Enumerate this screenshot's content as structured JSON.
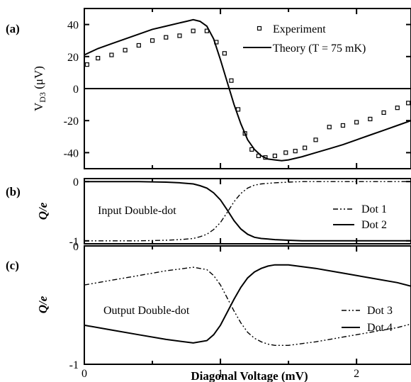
{
  "chart_data": [
    {
      "panel": "(a)",
      "type": "line",
      "ylabel_main": "V",
      "ylabel_sub": "D3",
      "ylabel_unit": " (μV)",
      "xlim": [
        0,
        2.4
      ],
      "ylim": [
        -50,
        50
      ],
      "yticks": [
        40,
        20,
        0,
        -20,
        -40
      ],
      "ytick_labels": [
        "40",
        "20",
        "0",
        "-20",
        "-40"
      ],
      "zero_line": true,
      "legend_position": "top-right",
      "series": [
        {
          "name": "Experiment",
          "marker": "open-square",
          "x": [
            0.02,
            0.1,
            0.2,
            0.3,
            0.4,
            0.5,
            0.6,
            0.7,
            0.8,
            0.9,
            0.97,
            1.03,
            1.08,
            1.13,
            1.18,
            1.23,
            1.28,
            1.33,
            1.4,
            1.48,
            1.55,
            1.62,
            1.7,
            1.8,
            1.9,
            2.0,
            2.1,
            2.2,
            2.3,
            2.38
          ],
          "values": [
            15,
            19,
            21,
            24,
            27,
            30,
            32,
            33,
            36,
            36,
            29,
            22,
            5,
            -13,
            -28,
            -38,
            -42,
            -43,
            -42,
            -40,
            -39,
            -37,
            -32,
            -24,
            -23,
            -21,
            -19,
            -15,
            -12,
            -9
          ]
        },
        {
          "name": "Theory (T = 75 mK)",
          "style": "solid",
          "x": [
            0,
            0.1,
            0.2,
            0.3,
            0.4,
            0.5,
            0.6,
            0.7,
            0.75,
            0.8,
            0.85,
            0.9,
            0.95,
            1.0,
            1.05,
            1.1,
            1.15,
            1.2,
            1.25,
            1.3,
            1.35,
            1.4,
            1.45,
            1.5,
            1.6,
            1.7,
            1.8,
            1.9,
            2.0,
            2.1,
            2.2,
            2.3,
            2.4
          ],
          "values": [
            21,
            25,
            28,
            31,
            34,
            37,
            39,
            41,
            42,
            43,
            42,
            39,
            31,
            18,
            4,
            -10,
            -22,
            -32,
            -38,
            -42,
            -44,
            -44.5,
            -45,
            -44.5,
            -42.5,
            -40,
            -37.5,
            -35,
            -32,
            -29,
            -26,
            -23,
            -20
          ]
        }
      ]
    },
    {
      "panel": "(b)",
      "type": "line",
      "ylabel": "Q/e",
      "xlim": [
        0,
        2.4
      ],
      "ylim": [
        -1.05,
        0.05
      ],
      "yticks": [
        0,
        -1
      ],
      "ytick_labels": [
        "0",
        "-1"
      ],
      "annotation": "Input Double-dot",
      "legend_position": "right",
      "series": [
        {
          "name": "Dot 1",
          "style": "dash-dot-dot",
          "x": [
            0,
            0.2,
            0.4,
            0.6,
            0.7,
            0.8,
            0.85,
            0.9,
            0.95,
            1.0,
            1.05,
            1.1,
            1.15,
            1.2,
            1.25,
            1.3,
            1.35,
            1.4,
            1.5,
            1.6,
            1.8,
            2.0,
            2.2,
            2.4
          ],
          "values": [
            -1,
            -1,
            -1,
            -0.99,
            -0.98,
            -0.96,
            -0.93,
            -0.89,
            -0.81,
            -0.69,
            -0.52,
            -0.34,
            -0.2,
            -0.11,
            -0.06,
            -0.04,
            -0.03,
            -0.02,
            -0.01,
            0,
            0,
            0,
            0,
            0
          ]
        },
        {
          "name": "Dot 2",
          "style": "solid",
          "x": [
            0,
            0.2,
            0.4,
            0.6,
            0.7,
            0.8,
            0.85,
            0.9,
            0.95,
            1.0,
            1.05,
            1.1,
            1.15,
            1.2,
            1.25,
            1.3,
            1.35,
            1.4,
            1.5,
            1.6,
            1.8,
            2.0,
            2.2,
            2.4
          ],
          "values": [
            0,
            0,
            0,
            -0.01,
            -0.02,
            -0.04,
            -0.07,
            -0.11,
            -0.19,
            -0.31,
            -0.48,
            -0.66,
            -0.8,
            -0.89,
            -0.94,
            -0.96,
            -0.97,
            -0.98,
            -0.99,
            -1,
            -1,
            -1,
            -1,
            -1
          ]
        }
      ]
    },
    {
      "panel": "(c)",
      "type": "line",
      "ylabel": "Q/e",
      "xlim": [
        0,
        2.4
      ],
      "ylim": [
        -1,
        0
      ],
      "yticks": [
        0,
        -1
      ],
      "ytick_labels": [
        "0",
        "-1"
      ],
      "xticks": [
        0,
        1,
        2
      ],
      "xtick_labels": [
        "0",
        "1",
        "2"
      ],
      "xlabel": "Diagonal Voltage (mV)",
      "annotation": "Output Double-dot",
      "legend_position": "right",
      "series": [
        {
          "name": "Dot 3",
          "style": "dash-dot-dot",
          "x": [
            0,
            0.2,
            0.4,
            0.6,
            0.8,
            0.9,
            0.95,
            1.0,
            1.05,
            1.1,
            1.15,
            1.2,
            1.25,
            1.3,
            1.35,
            1.4,
            1.45,
            1.5,
            1.7,
            1.9,
            2.1,
            2.3,
            2.4
          ],
          "values": [
            -0.33,
            -0.29,
            -0.25,
            -0.21,
            -0.18,
            -0.2,
            -0.25,
            -0.33,
            -0.44,
            -0.55,
            -0.65,
            -0.73,
            -0.78,
            -0.81,
            -0.83,
            -0.84,
            -0.84,
            -0.84,
            -0.81,
            -0.77,
            -0.73,
            -0.69,
            -0.66
          ]
        },
        {
          "name": "Dot 4",
          "style": "solid",
          "x": [
            0,
            0.2,
            0.4,
            0.6,
            0.8,
            0.9,
            0.95,
            1.0,
            1.05,
            1.1,
            1.15,
            1.2,
            1.25,
            1.3,
            1.35,
            1.4,
            1.45,
            1.5,
            1.7,
            1.9,
            2.1,
            2.3,
            2.4
          ],
          "values": [
            -0.67,
            -0.71,
            -0.75,
            -0.79,
            -0.82,
            -0.8,
            -0.75,
            -0.67,
            -0.56,
            -0.45,
            -0.35,
            -0.27,
            -0.22,
            -0.19,
            -0.17,
            -0.16,
            -0.16,
            -0.16,
            -0.19,
            -0.23,
            -0.27,
            -0.31,
            -0.34
          ]
        }
      ]
    }
  ]
}
